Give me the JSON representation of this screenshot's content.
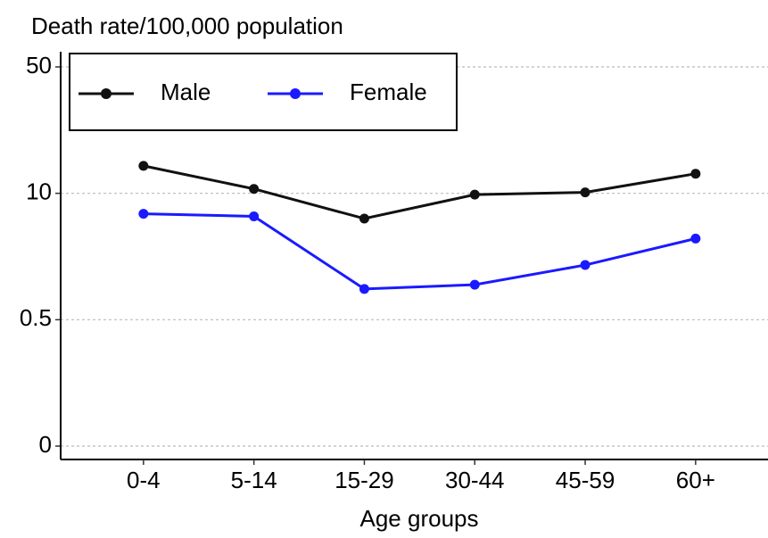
{
  "chart_data": {
    "type": "line",
    "y_label": "Death rate/100,000 population",
    "x_label": "Age groups",
    "categories": [
      "0-4",
      "5-14",
      "15-29",
      "30-44",
      "45-59",
      "60+"
    ],
    "series": [
      {
        "name": "Male",
        "color": "#111111",
        "values": [
          18.7,
          11.4,
          8.1,
          9.9,
          10.3,
          16.2
        ]
      },
      {
        "name": "Female",
        "color": "#1a1aff",
        "values": [
          8.46,
          8.27,
          2.81,
          3.13,
          4.61,
          6.6
        ]
      }
    ],
    "ylim": [
      -0.05,
      54
    ],
    "yticks": [
      0,
      0.5,
      10,
      50
    ],
    "grid": true,
    "legend": "top-left"
  }
}
